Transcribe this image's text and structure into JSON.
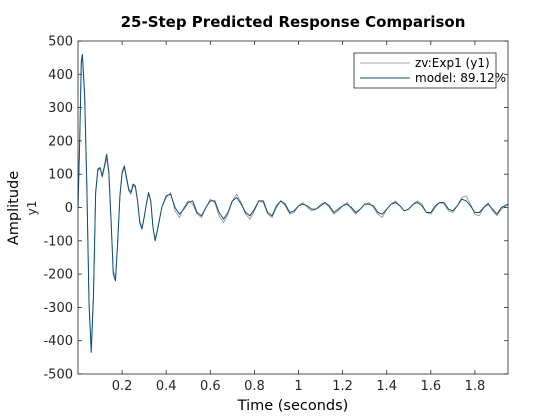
{
  "chart_data": {
    "type": "line",
    "title": "25-Step Predicted Response Comparison",
    "xlabel": "Time (seconds)",
    "ylabel": "Amplitude",
    "ylabel_secondary": "y1",
    "xlim": [
      0,
      1.95
    ],
    "ylim": [
      -500,
      500
    ],
    "x_ticks": [
      0.2,
      0.4,
      0.6,
      0.8,
      1,
      1.2,
      1.4,
      1.6,
      1.8
    ],
    "x_tick_labels": [
      "0.2",
      "0.4",
      "0.6",
      "0.8",
      "1",
      "1.2",
      "1.4",
      "1.6",
      "1.8"
    ],
    "y_ticks": [
      -500,
      -400,
      -300,
      -200,
      -100,
      0,
      100,
      200,
      300,
      400,
      500
    ],
    "y_tick_labels": [
      "-500",
      "-400",
      "-300",
      "-200",
      "-100",
      "0",
      "100",
      "200",
      "300",
      "400",
      "500"
    ],
    "grid": false,
    "legend_position": "top-right",
    "series": [
      {
        "name": "zv:Exp1 (y1)",
        "color": "#8c8c8c",
        "x": [
          0,
          0.008,
          0.015,
          0.02,
          0.03,
          0.04,
          0.05,
          0.06,
          0.07,
          0.08,
          0.09,
          0.1,
          0.11,
          0.12,
          0.13,
          0.14,
          0.15,
          0.16,
          0.17,
          0.18,
          0.19,
          0.2,
          0.21,
          0.22,
          0.23,
          0.24,
          0.25,
          0.26,
          0.27,
          0.28,
          0.29,
          0.3,
          0.31,
          0.32,
          0.33,
          0.34,
          0.35,
          0.36,
          0.38,
          0.4,
          0.42,
          0.44,
          0.46,
          0.48,
          0.5,
          0.52,
          0.54,
          0.56,
          0.58,
          0.6,
          0.62,
          0.64,
          0.66,
          0.68,
          0.7,
          0.72,
          0.74,
          0.76,
          0.78,
          0.8,
          0.82,
          0.84,
          0.86,
          0.88,
          0.9,
          0.92,
          0.94,
          0.96,
          0.98,
          1,
          1.02,
          1.04,
          1.06,
          1.08,
          1.1,
          1.12,
          1.14,
          1.16,
          1.18,
          1.2,
          1.22,
          1.24,
          1.26,
          1.28,
          1.3,
          1.32,
          1.34,
          1.36,
          1.38,
          1.4,
          1.42,
          1.44,
          1.46,
          1.48,
          1.5,
          1.52,
          1.54,
          1.56,
          1.58,
          1.6,
          1.62,
          1.64,
          1.66,
          1.68,
          1.7,
          1.72,
          1.74,
          1.76,
          1.78,
          1.8,
          1.82,
          1.84,
          1.86,
          1.88,
          1.9,
          1.92,
          1.95
        ],
        "values": [
          0,
          200,
          430,
          455,
          330,
          60,
          -280,
          -420,
          -260,
          40,
          110,
          118,
          90,
          120,
          150,
          100,
          -40,
          -190,
          -210,
          -100,
          30,
          100,
          120,
          85,
          50,
          40,
          65,
          60,
          20,
          -40,
          -60,
          -30,
          10,
          40,
          20,
          -60,
          -95,
          -65,
          0,
          30,
          45,
          -10,
          -30,
          0,
          20,
          10,
          -20,
          -30,
          0,
          25,
          15,
          -25,
          -45,
          -20,
          20,
          40,
          15,
          -20,
          -35,
          -10,
          20,
          15,
          -20,
          -30,
          0,
          20,
          5,
          -20,
          -15,
          5,
          15,
          0,
          -10,
          -5,
          10,
          15,
          0,
          -20,
          -10,
          5,
          15,
          -5,
          -20,
          -5,
          10,
          15,
          0,
          -20,
          -30,
          -5,
          10,
          20,
          5,
          -10,
          -5,
          10,
          20,
          10,
          -15,
          -20,
          0,
          15,
          10,
          -10,
          -15,
          5,
          30,
          35,
          10,
          -20,
          -25,
          0,
          15,
          -10,
          -25,
          -5,
          10
        ]
      },
      {
        "name": "model: 89.12%",
        "color": "#0a4f7f",
        "x": [
          0,
          0.008,
          0.015,
          0.02,
          0.03,
          0.04,
          0.05,
          0.06,
          0.07,
          0.08,
          0.09,
          0.1,
          0.11,
          0.12,
          0.13,
          0.14,
          0.15,
          0.16,
          0.17,
          0.18,
          0.19,
          0.2,
          0.21,
          0.22,
          0.23,
          0.24,
          0.25,
          0.26,
          0.27,
          0.28,
          0.29,
          0.3,
          0.31,
          0.32,
          0.33,
          0.34,
          0.35,
          0.36,
          0.38,
          0.4,
          0.42,
          0.44,
          0.46,
          0.48,
          0.5,
          0.52,
          0.54,
          0.56,
          0.58,
          0.6,
          0.62,
          0.64,
          0.66,
          0.68,
          0.7,
          0.72,
          0.74,
          0.76,
          0.78,
          0.8,
          0.82,
          0.84,
          0.86,
          0.88,
          0.9,
          0.92,
          0.94,
          0.96,
          0.98,
          1,
          1.02,
          1.04,
          1.06,
          1.08,
          1.1,
          1.12,
          1.14,
          1.16,
          1.18,
          1.2,
          1.22,
          1.24,
          1.26,
          1.28,
          1.3,
          1.32,
          1.34,
          1.36,
          1.38,
          1.4,
          1.42,
          1.44,
          1.46,
          1.48,
          1.5,
          1.52,
          1.54,
          1.56,
          1.58,
          1.6,
          1.62,
          1.64,
          1.66,
          1.68,
          1.7,
          1.72,
          1.74,
          1.76,
          1.78,
          1.8,
          1.82,
          1.84,
          1.86,
          1.88,
          1.9,
          1.92,
          1.95
        ],
        "values": [
          0,
          210,
          440,
          460,
          340,
          70,
          -290,
          -435,
          -270,
          45,
          115,
          120,
          95,
          125,
          160,
          105,
          -40,
          -200,
          -220,
          -105,
          35,
          105,
          125,
          90,
          55,
          45,
          70,
          65,
          20,
          -45,
          -65,
          -30,
          10,
          45,
          20,
          -60,
          -100,
          -70,
          0,
          35,
          40,
          0,
          -20,
          -5,
          15,
          20,
          -15,
          -25,
          0,
          20,
          20,
          -15,
          -35,
          -15,
          20,
          30,
          10,
          -15,
          -25,
          -5,
          20,
          20,
          -15,
          -25,
          5,
          20,
          10,
          -15,
          -10,
          5,
          10,
          5,
          -5,
          -5,
          5,
          15,
          5,
          -15,
          -5,
          5,
          10,
          0,
          -15,
          -5,
          10,
          10,
          5,
          -15,
          -20,
          -5,
          10,
          15,
          5,
          -10,
          -5,
          10,
          15,
          5,
          -15,
          -15,
          5,
          15,
          15,
          -5,
          -10,
          5,
          25,
          20,
          5,
          -15,
          -15,
          0,
          10,
          -5,
          -20,
          0,
          10
        ]
      }
    ]
  }
}
